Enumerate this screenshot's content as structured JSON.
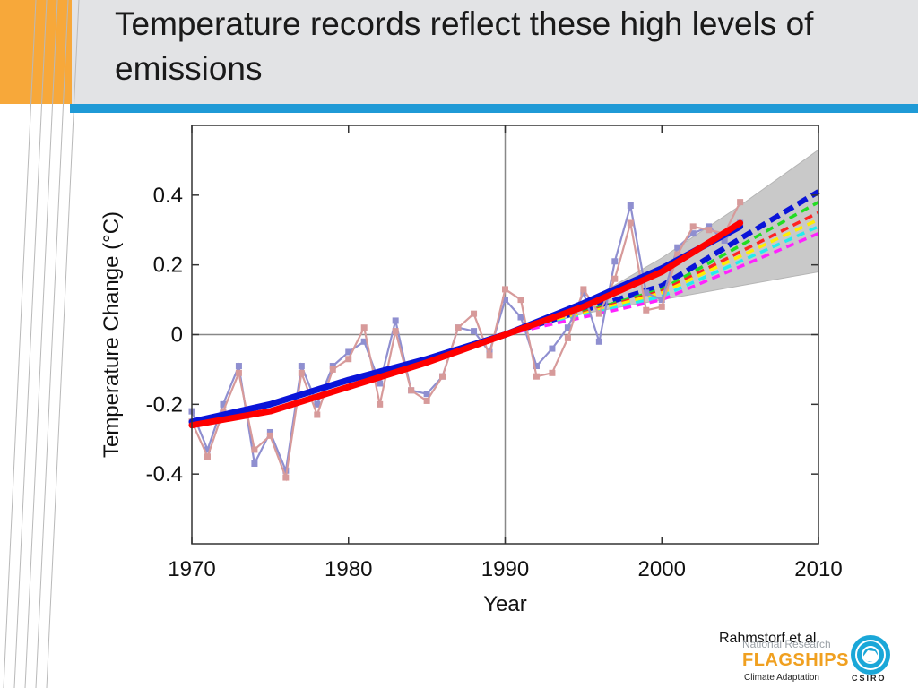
{
  "slide": {
    "title": "Temperature records reflect these high levels of emissions",
    "citation": "Rahmstorf et al."
  },
  "logo": {
    "line1": "National Research",
    "line2": "FLAGSHIPS",
    "line3": "Climate Adaptation",
    "org": "CSIRO"
  },
  "colors": {
    "header_bg": "#e2e3e5",
    "accent_orange": "#f7a83a",
    "accent_blue": "#1f9ad6",
    "obs_series_1": "#8f8fd0",
    "obs_series_2": "#d79a9a",
    "trend_red": "#ff0000",
    "trend_blue": "#0a14d8",
    "envelope": "#c9c9c9"
  },
  "chart_data": {
    "type": "line",
    "title": "",
    "xlabel": "Year",
    "ylabel": "Temperature Change (°C)",
    "xlim": [
      1970,
      2010
    ],
    "ylim": [
      -0.6,
      0.6
    ],
    "x_ticks": [
      1970,
      1980,
      1990,
      2000,
      2010
    ],
    "y_ticks": [
      -0.4,
      -0.2,
      0,
      0.2,
      0.4
    ],
    "y_tick_labels": [
      "-0.4",
      "-0.2",
      "0",
      "0.2",
      "0.4"
    ],
    "zero_line": true,
    "reference_year_line": 1990,
    "series": [
      {
        "kind": "observed",
        "color": "#8f8fd0",
        "x": [
          1970,
          1971,
          1972,
          1973,
          1974,
          1975,
          1976,
          1977,
          1978,
          1979,
          1980,
          1981,
          1982,
          1983,
          1984,
          1985,
          1986,
          1987,
          1988,
          1989,
          1990,
          1991,
          1992,
          1993,
          1994,
          1995,
          1996,
          1997,
          1998,
          1999,
          2000,
          2001,
          2002,
          2003,
          2004,
          2005
        ],
        "y": [
          -0.22,
          -0.33,
          -0.2,
          -0.09,
          -0.37,
          -0.28,
          -0.39,
          -0.09,
          -0.2,
          -0.09,
          -0.05,
          -0.02,
          -0.14,
          0.04,
          -0.16,
          -0.17,
          -0.12,
          0.02,
          0.01,
          -0.05,
          0.1,
          0.05,
          -0.09,
          -0.04,
          0.02,
          0.12,
          -0.02,
          0.21,
          0.37,
          0.12,
          0.1,
          0.25,
          0.29,
          0.31,
          0.27,
          0.32
        ]
      },
      {
        "kind": "observed",
        "color": "#d79a9a",
        "x": [
          1970,
          1971,
          1972,
          1973,
          1974,
          1975,
          1976,
          1977,
          1978,
          1979,
          1980,
          1981,
          1982,
          1983,
          1984,
          1985,
          1986,
          1987,
          1988,
          1989,
          1990,
          1991,
          1992,
          1993,
          1994,
          1995,
          1996,
          1997,
          1998,
          1999,
          2000,
          2001,
          2002,
          2003,
          2004,
          2005
        ],
        "y": [
          -0.25,
          -0.35,
          -0.22,
          -0.11,
          -0.33,
          -0.29,
          -0.41,
          -0.11,
          -0.23,
          -0.1,
          -0.07,
          0.02,
          -0.2,
          0.01,
          -0.16,
          -0.19,
          -0.12,
          0.02,
          0.06,
          -0.06,
          0.13,
          0.1,
          -0.12,
          -0.11,
          -0.01,
          0.13,
          0.06,
          0.16,
          0.32,
          0.07,
          0.08,
          0.23,
          0.31,
          0.3,
          0.29,
          0.38
        ]
      },
      {
        "kind": "trend",
        "color": "#0a14d8",
        "x": [
          1970,
          1975,
          1980,
          1985,
          1990,
          1995,
          2000,
          2005
        ],
        "y": [
          -0.25,
          -0.2,
          -0.13,
          -0.07,
          0.0,
          0.09,
          0.19,
          0.31
        ]
      },
      {
        "kind": "trend",
        "color": "#ff0000",
        "x": [
          1970,
          1975,
          1980,
          1985,
          1990,
          1995,
          2000,
          2005
        ],
        "y": [
          -0.26,
          -0.22,
          -0.15,
          -0.08,
          0.0,
          0.08,
          0.18,
          0.32
        ]
      }
    ],
    "projections": {
      "start_year": 1990,
      "end_year": 2010,
      "envelope": {
        "x": [
          1990,
          1995,
          2000,
          2005,
          2010
        ],
        "lower": [
          0.0,
          0.06,
          0.1,
          0.14,
          0.18
        ],
        "upper": [
          0.0,
          0.09,
          0.22,
          0.37,
          0.53
        ]
      },
      "lines": [
        {
          "color": "#0a14d8",
          "x": [
            1990,
            2000,
            2010
          ],
          "y": [
            0.0,
            0.14,
            0.41
          ]
        },
        {
          "color": "#22dd22",
          "x": [
            1990,
            2000,
            2010
          ],
          "y": [
            0.0,
            0.13,
            0.38
          ]
        },
        {
          "color": "#ff2222",
          "x": [
            1990,
            2000,
            2010
          ],
          "y": [
            0.0,
            0.125,
            0.35
          ]
        },
        {
          "color": "#ffee00",
          "x": [
            1990,
            2000,
            2010
          ],
          "y": [
            0.0,
            0.12,
            0.33
          ]
        },
        {
          "color": "#22eeee",
          "x": [
            1990,
            2000,
            2010
          ],
          "y": [
            0.0,
            0.11,
            0.31
          ]
        },
        {
          "color": "#ff22ff",
          "x": [
            1990,
            2000,
            2010
          ],
          "y": [
            0.0,
            0.1,
            0.29
          ]
        }
      ]
    }
  }
}
